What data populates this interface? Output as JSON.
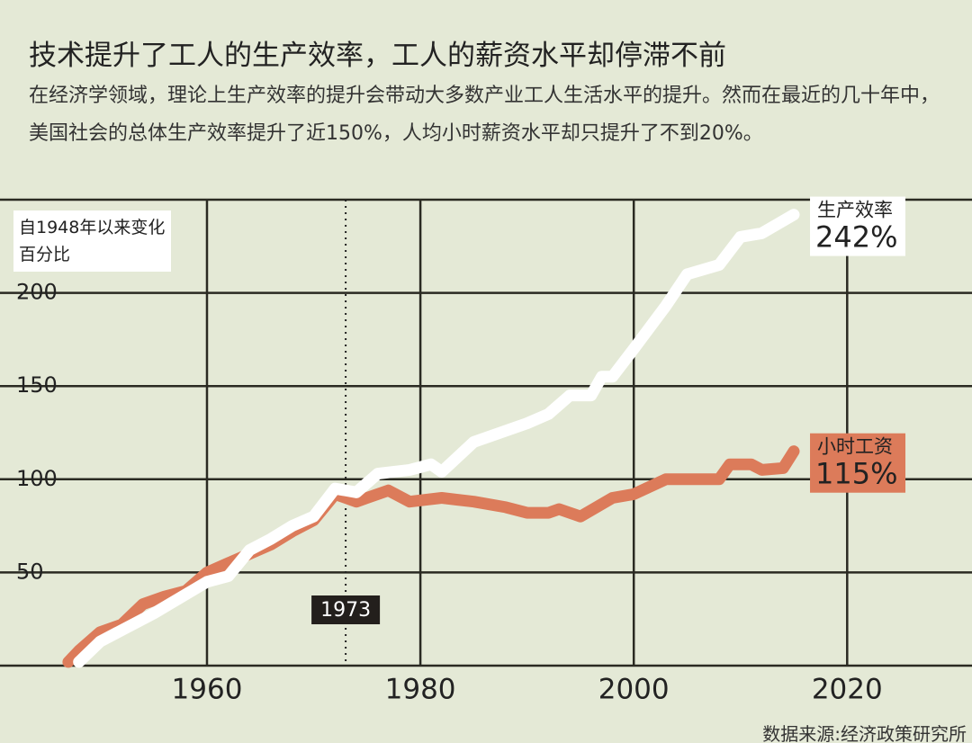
{
  "chart_data": {
    "type": "line",
    "title": "技术提升了工人的生产效率，工人的薪资水平却停滞不前",
    "subtitle": "在经济学领域，理论上生产效率的提升会带动大多数产业工人生活水平的提升。然而在最近的几十年中，美国社会的总体生产效率提升了近150%，人均小时薪资水平却只提升了不到20%。",
    "y_label": "自1948年以来变化百分比",
    "source": "数据来源:经济政策研究所",
    "xlim": [
      1940.6,
      2031.7
    ],
    "ylim": [
      0,
      250
    ],
    "xticks": [
      1960,
      1980,
      2000,
      2020
    ],
    "yticks": [
      50,
      100,
      150,
      200
    ],
    "grid": true,
    "reference_line": 1973,
    "series": [
      {
        "name": "小时工资",
        "color": "#dc7b5a",
        "end_label": "115%",
        "x": [
          1947,
          1948,
          1950,
          1952,
          1954,
          1956,
          1958,
          1960,
          1962,
          1964,
          1966,
          1968,
          1970,
          1972,
          1973,
          1974,
          1975,
          1977,
          1979,
          1982,
          1985,
          1988,
          1990,
          1992,
          1993,
          1995,
          1998,
          2000,
          2003,
          2006,
          2008,
          2009,
          2011,
          2012,
          2014,
          2015
        ],
        "values": [
          2,
          8,
          18,
          22,
          33,
          37,
          40,
          50,
          55,
          60,
          65,
          72,
          78,
          92,
          90,
          88,
          90,
          94,
          88,
          90,
          88,
          85,
          82,
          82,
          84,
          80,
          90,
          92,
          100,
          100,
          100,
          108,
          108,
          105,
          106,
          115
        ]
      },
      {
        "name": "生产效率",
        "color": "#ffffff",
        "end_label": "242%",
        "x": [
          1948,
          1950,
          1955,
          1960,
          1962,
          1964,
          1966,
          1968,
          1970,
          1972,
          1974,
          1976,
          1979,
          1981,
          1982,
          1985,
          1990,
          1992,
          1994,
          1996,
          1997,
          1998,
          2000,
          2003,
          2005,
          2008,
          2010,
          2012,
          2015
        ],
        "values": [
          2,
          13,
          28,
          45,
          48,
          62,
          68,
          75,
          80,
          95,
          93,
          103,
          105,
          108,
          104,
          120,
          130,
          135,
          145,
          145,
          155,
          155,
          170,
          193,
          210,
          215,
          230,
          232,
          242
        ]
      }
    ]
  }
}
